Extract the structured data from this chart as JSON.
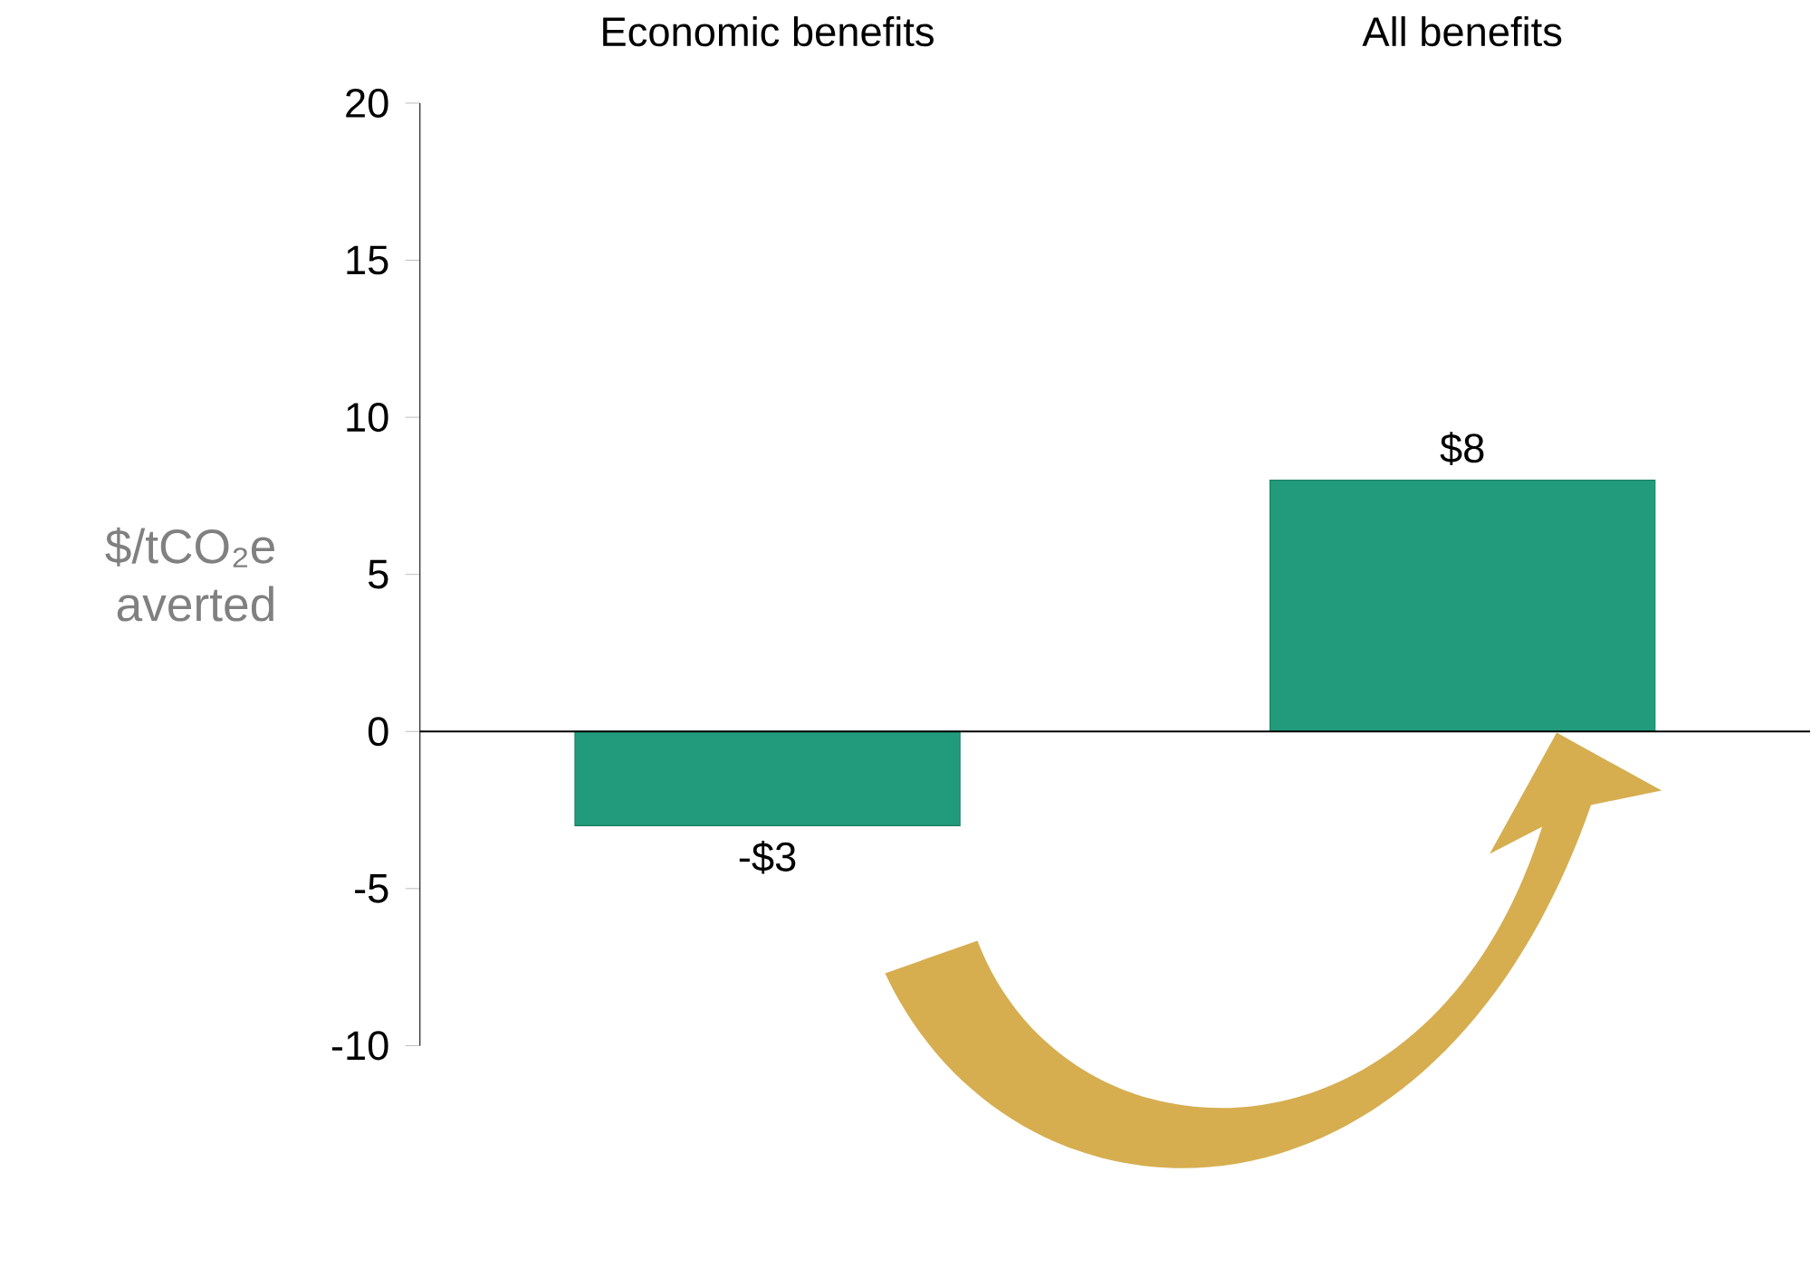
{
  "chart_data": {
    "type": "bar",
    "ylabel": "$/tCO₂e averted",
    "categories": [
      "Economic benefits",
      "All benefits"
    ],
    "values": [
      -3,
      8
    ],
    "color": "#219b7b",
    "value_labels": [
      "-$3",
      "$8"
    ],
    "ylim": [
      -10,
      20
    ],
    "yticks": [
      -10,
      -5,
      0,
      5,
      10,
      15,
      20
    ]
  }
}
